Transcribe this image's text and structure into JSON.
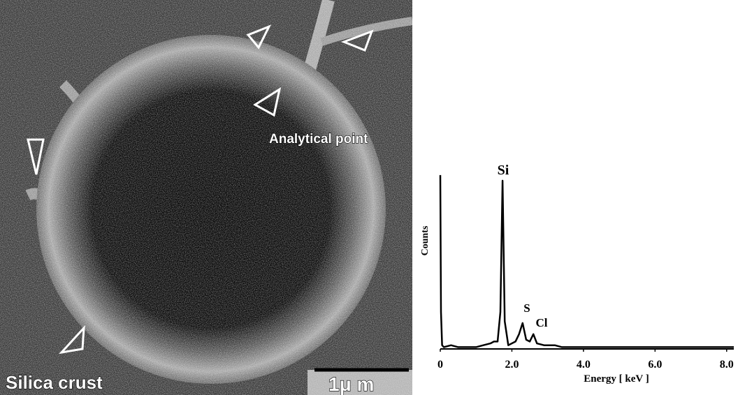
{
  "image": {
    "labels": [
      "Analytical point",
      "Silica crust"
    ],
    "scale_bar": "1μ m"
  },
  "chart_data": {
    "type": "line",
    "xlabel": "Energy [ keV ]",
    "ylabel": "Counts",
    "x": [
      0,
      0.02,
      0.05,
      0.1,
      0.3,
      0.5,
      0.8,
      1.0,
      1.2,
      1.4,
      1.5,
      1.6,
      1.68,
      1.74,
      1.8,
      1.9,
      2.1,
      2.2,
      2.3,
      2.4,
      2.5,
      2.6,
      2.7,
      2.9,
      3.2,
      3.4,
      3.6,
      4.0,
      5.0,
      6.0,
      7.0,
      8.0,
      8.2
    ],
    "values": [
      94,
      20,
      2,
      1,
      2,
      1,
      1,
      1,
      2,
      3,
      4,
      4,
      20,
      91,
      15,
      2,
      4,
      8,
      14,
      5,
      4,
      8,
      3,
      2,
      2,
      1,
      1,
      1,
      1,
      1,
      1,
      1,
      1
    ],
    "color": "#000000",
    "xlim": [
      0,
      8.2
    ],
    "ylim": [
      0,
      100
    ],
    "xticks": [
      0,
      {
        "value": 2,
        "label": "2.0"
      },
      {
        "value": 4,
        "label": "4.0"
      },
      {
        "value": 6,
        "label": "6.0"
      },
      {
        "value": 8,
        "label": "8.0"
      }
    ],
    "annotations": [
      "Si",
      "S",
      "Cl"
    ]
  }
}
